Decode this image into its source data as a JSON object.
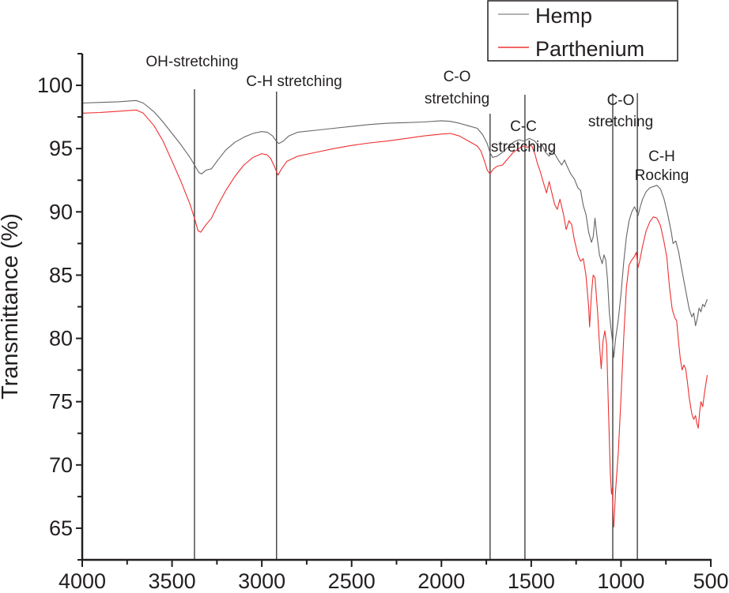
{
  "chart_data": {
    "type": "line",
    "title": "",
    "xlabel": "",
    "ylabel": "Transmittance (%)",
    "xlim": [
      4000,
      500
    ],
    "ylim": [
      62.5,
      102.5
    ],
    "x_ticks": [
      4000,
      3500,
      3000,
      2500,
      2000,
      1500,
      1000,
      500
    ],
    "x_tick_labels": [
      "4000",
      "3500",
      "3000",
      "2500",
      "2000",
      "1500",
      "1000",
      "500"
    ],
    "y_ticks": [
      65,
      70,
      75,
      80,
      85,
      90,
      95,
      100
    ],
    "y_tick_labels": [
      "65",
      "70",
      "75",
      "80",
      "85",
      "90",
      "95",
      "100"
    ],
    "grid": false,
    "legend": {
      "placement": "top-right",
      "entries": [
        {
          "name": "Hemp",
          "color": "#555555"
        },
        {
          "name": "Parthenium",
          "color": "#ee2222"
        }
      ]
    },
    "series": [
      {
        "name": "Hemp",
        "color": "#555555",
        "points": [
          [
            4000,
            98.6
          ],
          [
            3900,
            98.65
          ],
          [
            3800,
            98.7
          ],
          [
            3700,
            98.8
          ],
          [
            3660,
            98.6
          ],
          [
            3600,
            97.9
          ],
          [
            3550,
            97.1
          ],
          [
            3500,
            96.2
          ],
          [
            3450,
            95.3
          ],
          [
            3400,
            94.3
          ],
          [
            3375,
            93.7
          ],
          [
            3350,
            93.1
          ],
          [
            3335,
            93.0
          ],
          [
            3310,
            93.3
          ],
          [
            3280,
            93.4
          ],
          [
            3250,
            94.0
          ],
          [
            3200,
            94.9
          ],
          [
            3150,
            95.5
          ],
          [
            3100,
            95.9
          ],
          [
            3050,
            96.2
          ],
          [
            3000,
            96.35
          ],
          [
            2970,
            96.3
          ],
          [
            2940,
            96.0
          ],
          [
            2920,
            95.6
          ],
          [
            2905,
            95.4
          ],
          [
            2880,
            95.6
          ],
          [
            2850,
            96.0
          ],
          [
            2800,
            96.3
          ],
          [
            2700,
            96.45
          ],
          [
            2600,
            96.6
          ],
          [
            2500,
            96.75
          ],
          [
            2400,
            96.9
          ],
          [
            2300,
            97.0
          ],
          [
            2200,
            97.05
          ],
          [
            2100,
            97.1
          ],
          [
            2000,
            97.2
          ],
          [
            1950,
            97.15
          ],
          [
            1900,
            97.0
          ],
          [
            1850,
            96.8
          ],
          [
            1800,
            96.6
          ],
          [
            1770,
            96.1
          ],
          [
            1745,
            95.4
          ],
          [
            1730,
            94.7
          ],
          [
            1715,
            94.3
          ],
          [
            1690,
            94.4
          ],
          [
            1660,
            94.7
          ],
          [
            1630,
            95.1
          ],
          [
            1600,
            95.5
          ],
          [
            1570,
            95.7
          ],
          [
            1540,
            95.6
          ],
          [
            1510,
            95.8
          ],
          [
            1480,
            95.6
          ],
          [
            1455,
            95.1
          ],
          [
            1440,
            95.3
          ],
          [
            1420,
            94.7
          ],
          [
            1400,
            94.4
          ],
          [
            1385,
            94.8
          ],
          [
            1370,
            94.6
          ],
          [
            1345,
            94.0
          ],
          [
            1330,
            93.7
          ],
          [
            1315,
            94.1
          ],
          [
            1300,
            93.6
          ],
          [
            1280,
            93.0
          ],
          [
            1260,
            92.6
          ],
          [
            1240,
            91.9
          ],
          [
            1225,
            91.7
          ],
          [
            1210,
            90.5
          ],
          [
            1195,
            89.8
          ],
          [
            1180,
            88.4
          ],
          [
            1165,
            87.6
          ],
          [
            1155,
            88.0
          ],
          [
            1145,
            89.5
          ],
          [
            1135,
            88.2
          ],
          [
            1120,
            86.6
          ],
          [
            1105,
            85.9
          ],
          [
            1095,
            86.6
          ],
          [
            1085,
            86.2
          ],
          [
            1075,
            84.6
          ],
          [
            1065,
            82.0
          ],
          [
            1055,
            80.7
          ],
          [
            1048,
            79.9
          ],
          [
            1040,
            78.5
          ],
          [
            1030,
            80.0
          ],
          [
            1015,
            81.5
          ],
          [
            1000,
            83.5
          ],
          [
            985,
            86.0
          ],
          [
            970,
            88.0
          ],
          [
            955,
            89.3
          ],
          [
            940,
            90.0
          ],
          [
            925,
            90.4
          ],
          [
            915,
            90.1
          ],
          [
            905,
            89.7
          ],
          [
            895,
            90.3
          ],
          [
            880,
            91.0
          ],
          [
            860,
            91.6
          ],
          [
            840,
            91.9
          ],
          [
            820,
            92.0
          ],
          [
            800,
            92.1
          ],
          [
            780,
            91.8
          ],
          [
            760,
            91.0
          ],
          [
            740,
            89.8
          ],
          [
            720,
            88.4
          ],
          [
            710,
            87.5
          ],
          [
            695,
            87.7
          ],
          [
            680,
            86.9
          ],
          [
            660,
            85.3
          ],
          [
            640,
            83.8
          ],
          [
            620,
            82.3
          ],
          [
            605,
            81.7
          ],
          [
            595,
            82.0
          ],
          [
            585,
            81.0
          ],
          [
            575,
            81.6
          ],
          [
            565,
            82.4
          ],
          [
            555,
            82.1
          ],
          [
            545,
            82.7
          ],
          [
            535,
            82.5
          ],
          [
            520,
            83.1
          ]
        ]
      },
      {
        "name": "Parthenium",
        "color": "#ee2222",
        "points": [
          [
            4000,
            97.8
          ],
          [
            3900,
            97.85
          ],
          [
            3800,
            97.95
          ],
          [
            3700,
            98.05
          ],
          [
            3660,
            97.8
          ],
          [
            3600,
            96.8
          ],
          [
            3550,
            95.6
          ],
          [
            3500,
            94.0
          ],
          [
            3450,
            92.4
          ],
          [
            3400,
            90.6
          ],
          [
            3375,
            89.5
          ],
          [
            3355,
            88.5
          ],
          [
            3340,
            88.4
          ],
          [
            3310,
            89.0
          ],
          [
            3280,
            89.5
          ],
          [
            3250,
            90.4
          ],
          [
            3200,
            91.7
          ],
          [
            3150,
            92.8
          ],
          [
            3100,
            93.7
          ],
          [
            3050,
            94.3
          ],
          [
            3000,
            94.6
          ],
          [
            2970,
            94.5
          ],
          [
            2950,
            94.2
          ],
          [
            2930,
            93.6
          ],
          [
            2910,
            92.9
          ],
          [
            2890,
            93.4
          ],
          [
            2860,
            94.0
          ],
          [
            2800,
            94.4
          ],
          [
            2700,
            94.7
          ],
          [
            2600,
            95.0
          ],
          [
            2500,
            95.25
          ],
          [
            2400,
            95.45
          ],
          [
            2300,
            95.6
          ],
          [
            2200,
            95.8
          ],
          [
            2100,
            96.0
          ],
          [
            2000,
            96.15
          ],
          [
            1950,
            96.2
          ],
          [
            1900,
            96.0
          ],
          [
            1850,
            95.6
          ],
          [
            1800,
            95.2
          ],
          [
            1780,
            94.8
          ],
          [
            1760,
            94.0
          ],
          [
            1745,
            93.3
          ],
          [
            1730,
            93.0
          ],
          [
            1710,
            93.4
          ],
          [
            1690,
            93.6
          ],
          [
            1660,
            93.7
          ],
          [
            1630,
            94.2
          ],
          [
            1600,
            94.7
          ],
          [
            1570,
            95.0
          ],
          [
            1545,
            95.2
          ],
          [
            1520,
            95.1
          ],
          [
            1500,
            95.3
          ],
          [
            1480,
            94.6
          ],
          [
            1465,
            93.8
          ],
          [
            1450,
            93.2
          ],
          [
            1430,
            92.2
          ],
          [
            1415,
            91.5
          ],
          [
            1400,
            92.4
          ],
          [
            1390,
            91.8
          ],
          [
            1370,
            90.6
          ],
          [
            1355,
            90.2
          ],
          [
            1340,
            91.0
          ],
          [
            1320,
            89.8
          ],
          [
            1305,
            88.6
          ],
          [
            1290,
            89.3
          ],
          [
            1275,
            89.0
          ],
          [
            1260,
            87.8
          ],
          [
            1240,
            86.6
          ],
          [
            1225,
            86.1
          ],
          [
            1210,
            86.3
          ],
          [
            1195,
            85.0
          ],
          [
            1180,
            82.5
          ],
          [
            1175,
            80.9
          ],
          [
            1165,
            83.5
          ],
          [
            1155,
            85.0
          ],
          [
            1145,
            84.8
          ],
          [
            1130,
            82.0
          ],
          [
            1120,
            79.5
          ],
          [
            1110,
            77.6
          ],
          [
            1100,
            79.8
          ],
          [
            1090,
            80.6
          ],
          [
            1080,
            79.5
          ],
          [
            1070,
            74.5
          ],
          [
            1060,
            69.5
          ],
          [
            1053,
            67.7
          ],
          [
            1048,
            68.2
          ],
          [
            1043,
            65.3
          ],
          [
            1040,
            65.1
          ],
          [
            1030,
            68.0
          ],
          [
            1015,
            71.0
          ],
          [
            1000,
            75.3
          ],
          [
            985,
            80.0
          ],
          [
            970,
            84.0
          ],
          [
            955,
            85.8
          ],
          [
            940,
            86.2
          ],
          [
            925,
            86.5
          ],
          [
            915,
            86.8
          ],
          [
            905,
            85.6
          ],
          [
            895,
            86.2
          ],
          [
            880,
            87.3
          ],
          [
            860,
            88.5
          ],
          [
            840,
            89.2
          ],
          [
            820,
            89.6
          ],
          [
            800,
            89.5
          ],
          [
            780,
            88.9
          ],
          [
            760,
            87.6
          ],
          [
            745,
            86.4
          ],
          [
            730,
            84.0
          ],
          [
            715,
            82.3
          ],
          [
            700,
            81.6
          ],
          [
            690,
            81.4
          ],
          [
            680,
            79.8
          ],
          [
            670,
            78.4
          ],
          [
            660,
            77.5
          ],
          [
            650,
            77.9
          ],
          [
            640,
            77.6
          ],
          [
            630,
            76.5
          ],
          [
            620,
            75.3
          ],
          [
            605,
            74.0
          ],
          [
            595,
            73.6
          ],
          [
            585,
            73.9
          ],
          [
            578,
            73.3
          ],
          [
            570,
            72.9
          ],
          [
            562,
            74.2
          ],
          [
            555,
            75.0
          ],
          [
            545,
            74.6
          ],
          [
            535,
            75.7
          ],
          [
            520,
            77.1
          ]
        ]
      }
    ],
    "reference_lines": [
      {
        "x": 3375,
        "label_lines": [
          "OH-stretching"
        ]
      },
      {
        "x": 2918,
        "label_lines": [
          "C-H stretching"
        ]
      },
      {
        "x": 1729,
        "label_lines": [
          "C-O",
          "stretching"
        ]
      },
      {
        "x": 1535,
        "label_lines": [
          "C-C",
          "stretching"
        ]
      },
      {
        "x": 1046,
        "label_lines": [
          "C-O",
          "stretching"
        ]
      },
      {
        "x": 909,
        "label_lines": [
          "C-H",
          "Rocking"
        ]
      }
    ],
    "annotations": [
      {
        "text": "OH-stretching"
      },
      {
        "text": "C-H stretching"
      },
      {
        "text": "C-O stretching"
      },
      {
        "text": "C-C stretching"
      },
      {
        "text": "C-O stretching"
      },
      {
        "text": "C-H Rocking"
      }
    ]
  }
}
